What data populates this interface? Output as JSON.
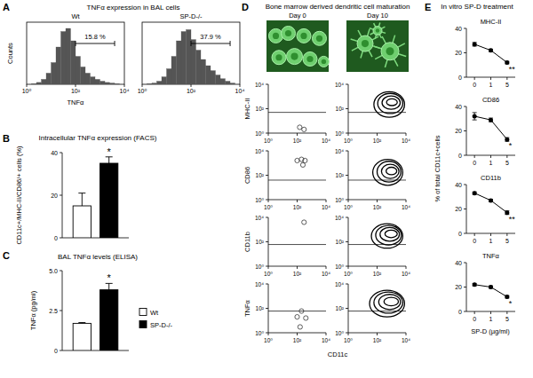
{
  "chart_data": [
    {
      "panel": "A",
      "type": "histogram",
      "title": "TNFα expression in BAL cells",
      "subtitle": "Wt",
      "x_label": "TNFα",
      "y_label": "Counts",
      "log": "x",
      "tick_labels": "x",
      "color": "#555555",
      "bins": [
        1,
        1.585,
        2.512,
        3.981,
        6.31,
        10,
        15.85,
        25.12,
        39.81,
        63.1,
        100,
        158.5,
        251.2,
        398.1,
        631,
        1000,
        1585,
        2512,
        3981,
        6310,
        10000
      ],
      "values": [
        0,
        1,
        3,
        8,
        18,
        35,
        60,
        85,
        90,
        70,
        45,
        28,
        18,
        12,
        8,
        5,
        3,
        2,
        1,
        0
      ],
      "xlim": [
        1,
        10000
      ],
      "xticks": [
        {
          "value": 1,
          "label": "10⁰"
        },
        {
          "value": 100,
          "label": "10²"
        },
        {
          "value": 10000,
          "label": "10⁴"
        }
      ],
      "ylim": [
        0,
        100
      ],
      "annotations": [
        {
          "text": "15.8 %",
          "x_range": [
            100,
            4000
          ]
        }
      ]
    },
    {
      "type": "histogram",
      "subtitle": "SP-D-/-",
      "log": "x",
      "tick_labels": "x",
      "color": "#555555",
      "bins": [
        1,
        1.585,
        2.512,
        3.981,
        6.31,
        10,
        15.85,
        25.12,
        39.81,
        63.1,
        100,
        158.5,
        251.2,
        398.1,
        631,
        1000,
        1585,
        2512,
        3981,
        6310,
        10000
      ],
      "values": [
        0,
        1,
        2,
        5,
        12,
        25,
        45,
        70,
        85,
        88,
        72,
        55,
        40,
        30,
        22,
        15,
        9,
        5,
        2,
        0
      ],
      "xlim": [
        1,
        10000
      ],
      "xticks": [
        {
          "value": 1,
          "label": "10⁰"
        },
        {
          "value": 100,
          "label": "10²"
        },
        {
          "value": 10000,
          "label": "10⁴"
        }
      ],
      "ylim": [
        0,
        100
      ],
      "annotations": [
        {
          "text": "37.9 %",
          "x_range": [
            100,
            4000
          ]
        }
      ]
    },
    {
      "panel": "B",
      "type": "bar",
      "title": "Intracellular TNFα expression (FACS)",
      "y_label": "CD11c+/MHC-II/CD86/+ cells (%)",
      "categories": [
        null
      ],
      "series": [
        {
          "color": "#ffffff",
          "values": [
            15
          ],
          "errors": [
            6
          ]
        },
        {
          "color": "#000000",
          "values": [
            35
          ],
          "errors": [
            3
          ]
        }
      ],
      "ylim": [
        0,
        40
      ],
      "yticks": [
        0,
        20,
        40
      ],
      "annotations": [
        {
          "text": "*",
          "series": 1,
          "index": 0
        }
      ]
    },
    {
      "panel": "C",
      "type": "bar",
      "title": "BAL TNFα levels (ELISA)",
      "y_label": "TNFα (pg/ml)",
      "categories": [
        null
      ],
      "series": [
        {
          "name": "Wt",
          "color": "#ffffff",
          "values": [
            1.7
          ],
          "errors": [
            0.05
          ]
        },
        {
          "name": "SP-D-/-",
          "color": "#000000",
          "values": [
            3.8
          ],
          "errors": [
            0.4
          ]
        }
      ],
      "ylim": [
        0,
        5
      ],
      "yticks": [
        0,
        2.5,
        {
          "value": 5,
          "label": "5.0"
        }
      ],
      "legend": "right",
      "annotations": [
        {
          "text": "*",
          "series": 1,
          "index": 0
        }
      ]
    },
    {
      "panel": "D",
      "type": "scatter",
      "title": "Bone marrow derived dendritic cell maturation",
      "subtitle": "Day 0",
      "y_label": "MHC-II",
      "log": true,
      "marker": "circle",
      "x": [
        150,
        300
      ],
      "values": [
        3,
        2
      ],
      "gate": 50,
      "xlim": [
        1,
        10000
      ],
      "ylim": [
        1,
        10000
      ],
      "xticks": [
        {
          "value": 1,
          "label": "10⁰"
        },
        {
          "value": 100,
          "label": "10²"
        },
        {
          "value": 10000,
          "label": "10⁴"
        }
      ],
      "yticks": [
        {
          "value": 1,
          "label": "10⁰"
        },
        {
          "value": 100,
          "label": "10²"
        },
        {
          "value": 10000,
          "label": "10⁴"
        }
      ]
    },
    {
      "type": "contour",
      "subtitle": "Day 10",
      "log": true,
      "gate": 50,
      "contours": [
        {
          "x": [
            60,
            8000
          ],
          "y": [
            20,
            2500
          ]
        },
        {
          "x": [
            110,
            6000
          ],
          "y": [
            40,
            1800
          ]
        },
        {
          "x": [
            220,
            4000
          ],
          "y": [
            90,
            1100
          ]
        },
        {
          "x": [
            450,
            2500
          ],
          "y": [
            180,
            650
          ]
        }
      ],
      "xlim": [
        1,
        10000
      ],
      "ylim": [
        1,
        10000
      ],
      "xticks": [
        {
          "value": 1,
          "label": "10⁰"
        },
        {
          "value": 100,
          "label": "10²"
        },
        {
          "value": 10000,
          "label": "10⁴"
        }
      ],
      "yticks": [
        {
          "value": 1,
          "label": "10⁰"
        },
        {
          "value": 100,
          "label": "10²"
        },
        {
          "value": 10000,
          "label": "10⁴"
        }
      ]
    },
    {
      "type": "scatter",
      "y_label": "CD86",
      "log": true,
      "marker": "circle",
      "x": [
        100,
        200,
        350,
        250
      ],
      "values": [
        1600,
        2000,
        1600,
        700
      ],
      "gate": 40,
      "xlim": [
        1,
        10000
      ],
      "ylim": [
        1,
        10000
      ],
      "xticks": [
        {
          "value": 1,
          "label": "10⁰"
        },
        {
          "value": 100,
          "label": "10²"
        },
        {
          "value": 10000,
          "label": "10⁴"
        }
      ],
      "yticks": [
        {
          "value": 1,
          "label": "10⁰"
        },
        {
          "value": 100,
          "label": "10²"
        },
        {
          "value": 10000,
          "label": "10⁴"
        }
      ]
    },
    {
      "type": "contour",
      "log": true,
      "gate": 40,
      "contours": [
        {
          "x": [
            50,
            6000
          ],
          "y": [
            15,
            2000
          ]
        },
        {
          "x": [
            100,
            4500
          ],
          "y": [
            28,
            1400
          ]
        },
        {
          "x": [
            200,
            3300
          ],
          "y": [
            55,
            800
          ]
        },
        {
          "x": [
            420,
            2300
          ],
          "y": [
            110,
            450
          ]
        }
      ],
      "xlim": [
        1,
        10000
      ],
      "ylim": [
        1,
        10000
      ],
      "xticks": [
        {
          "value": 1,
          "label": "10⁰"
        },
        {
          "value": 100,
          "label": "10²"
        },
        {
          "value": 10000,
          "label": "10⁴"
        }
      ],
      "yticks": [
        {
          "value": 1,
          "label": "10⁰"
        },
        {
          "value": 100,
          "label": "10²"
        },
        {
          "value": 10000,
          "label": "10⁴"
        }
      ]
    },
    {
      "type": "scatter",
      "y_label": "CD11b",
      "log": true,
      "marker": "circle",
      "x": [
        300
      ],
      "values": [
        4000
      ],
      "gate": 60,
      "xlim": [
        1,
        10000
      ],
      "ylim": [
        1,
        10000
      ],
      "xticks": [
        {
          "value": 1,
          "label": "10⁰"
        },
        {
          "value": 100,
          "label": "10²"
        },
        {
          "value": 10000,
          "label": "10⁴"
        }
      ],
      "yticks": [
        {
          "value": 1,
          "label": "10⁰"
        },
        {
          "value": 100,
          "label": "10²"
        },
        {
          "value": 10000,
          "label": "10⁴"
        }
      ]
    },
    {
      "type": "contour",
      "log": true,
      "gate": 60,
      "contours": [
        {
          "x": [
            40,
            6000
          ],
          "y": [
            30,
            3000
          ]
        },
        {
          "x": [
            80,
            4800
          ],
          "y": [
            55,
            2200
          ]
        },
        {
          "x": [
            160,
            3500
          ],
          "y": [
            110,
            1500
          ]
        },
        {
          "x": [
            350,
            2500
          ],
          "y": [
            220,
            900
          ]
        }
      ],
      "xlim": [
        1,
        10000
      ],
      "ylim": [
        1,
        10000
      ],
      "xticks": [
        {
          "value": 1,
          "label": "10⁰"
        },
        {
          "value": 100,
          "label": "10²"
        },
        {
          "value": 10000,
          "label": "10⁴"
        }
      ],
      "yticks": [
        {
          "value": 1,
          "label": "10⁰"
        },
        {
          "value": 100,
          "label": "10²"
        },
        {
          "value": 10000,
          "label": "10⁴"
        }
      ]
    },
    {
      "type": "scatter",
      "y_label": "TNFα",
      "x_label": "CD11c",
      "log": true,
      "marker": "circle",
      "x": [
        100,
        200,
        400,
        160
      ],
      "values": [
        20,
        60,
        16,
        3
      ],
      "gate": 60,
      "xlim": [
        1,
        10000
      ],
      "ylim": [
        1,
        10000
      ],
      "xticks": [
        {
          "value": 1,
          "label": "10⁰"
        },
        {
          "value": 100,
          "label": "10²"
        },
        {
          "value": 10000,
          "label": "10⁴"
        }
      ],
      "yticks": [
        {
          "value": 1,
          "label": "10⁰"
        },
        {
          "value": 100,
          "label": "10²"
        },
        {
          "value": 10000,
          "label": "10⁴"
        }
      ]
    },
    {
      "type": "contour",
      "log": true,
      "gate": 60,
      "contours": [
        {
          "x": [
            30,
            8000
          ],
          "y": [
            20,
            3000
          ]
        },
        {
          "x": [
            60,
            6000
          ],
          "y": [
            40,
            2200
          ]
        },
        {
          "x": [
            130,
            4200
          ],
          "y": [
            80,
            1400
          ]
        },
        {
          "x": [
            300,
            3000
          ],
          "y": [
            160,
            800
          ]
        }
      ],
      "xlim": [
        1,
        10000
      ],
      "ylim": [
        1,
        10000
      ],
      "xticks": [
        {
          "value": 1,
          "label": "10⁰"
        },
        {
          "value": 100,
          "label": "10²"
        },
        {
          "value": 10000,
          "label": "10⁴"
        }
      ],
      "yticks": [
        {
          "value": 1,
          "label": "10⁰"
        },
        {
          "value": 100,
          "label": "10²"
        },
        {
          "value": 10000,
          "label": "10⁴"
        }
      ]
    },
    {
      "panel": "E",
      "type": "line",
      "title": "In vitro SP-D treatment",
      "subtitle": "MHC-II",
      "y_label": "% of total CD11c+cells",
      "marker": "circle",
      "color": "#000000",
      "categories": [
        "0",
        "1",
        "5"
      ],
      "values": [
        27,
        22,
        12
      ],
      "errors": [
        1.5,
        1,
        1
      ],
      "ylim": [
        0,
        40
      ],
      "yticks": [
        0,
        20,
        40
      ],
      "annotations": [
        {
          "text": "**",
          "index": 2
        }
      ]
    },
    {
      "type": "line",
      "subtitle": "CD86",
      "marker": "circle",
      "color": "#000000",
      "categories": [
        "0",
        "1",
        "5"
      ],
      "values": [
        32,
        29,
        13
      ],
      "errors": [
        3,
        1.5,
        1.5
      ],
      "ylim": [
        0,
        40
      ],
      "yticks": [
        0,
        20,
        40
      ],
      "annotations": [
        {
          "text": "*",
          "index": 2
        }
      ]
    },
    {
      "type": "line",
      "subtitle": "CD11b",
      "marker": "circle",
      "color": "#000000",
      "categories": [
        "0",
        "1",
        "5"
      ],
      "values": [
        33,
        27,
        17
      ],
      "errors": [
        1,
        1,
        1.5
      ],
      "ylim": [
        0,
        40
      ],
      "yticks": [
        0,
        20,
        40
      ],
      "annotations": [
        {
          "text": "**",
          "index": 2
        }
      ]
    },
    {
      "type": "line",
      "subtitle": "TNFα",
      "x_label": "SP-D (µg/ml)",
      "marker": "circle",
      "color": "#000000",
      "categories": [
        "0",
        "1",
        "5"
      ],
      "values": [
        22,
        20,
        12
      ],
      "errors": [
        1,
        1,
        1
      ],
      "ylim": [
        0,
        40
      ],
      "yticks": [
        0,
        20,
        40
      ],
      "annotations": [
        {
          "text": "*",
          "index": 2
        }
      ]
    }
  ]
}
